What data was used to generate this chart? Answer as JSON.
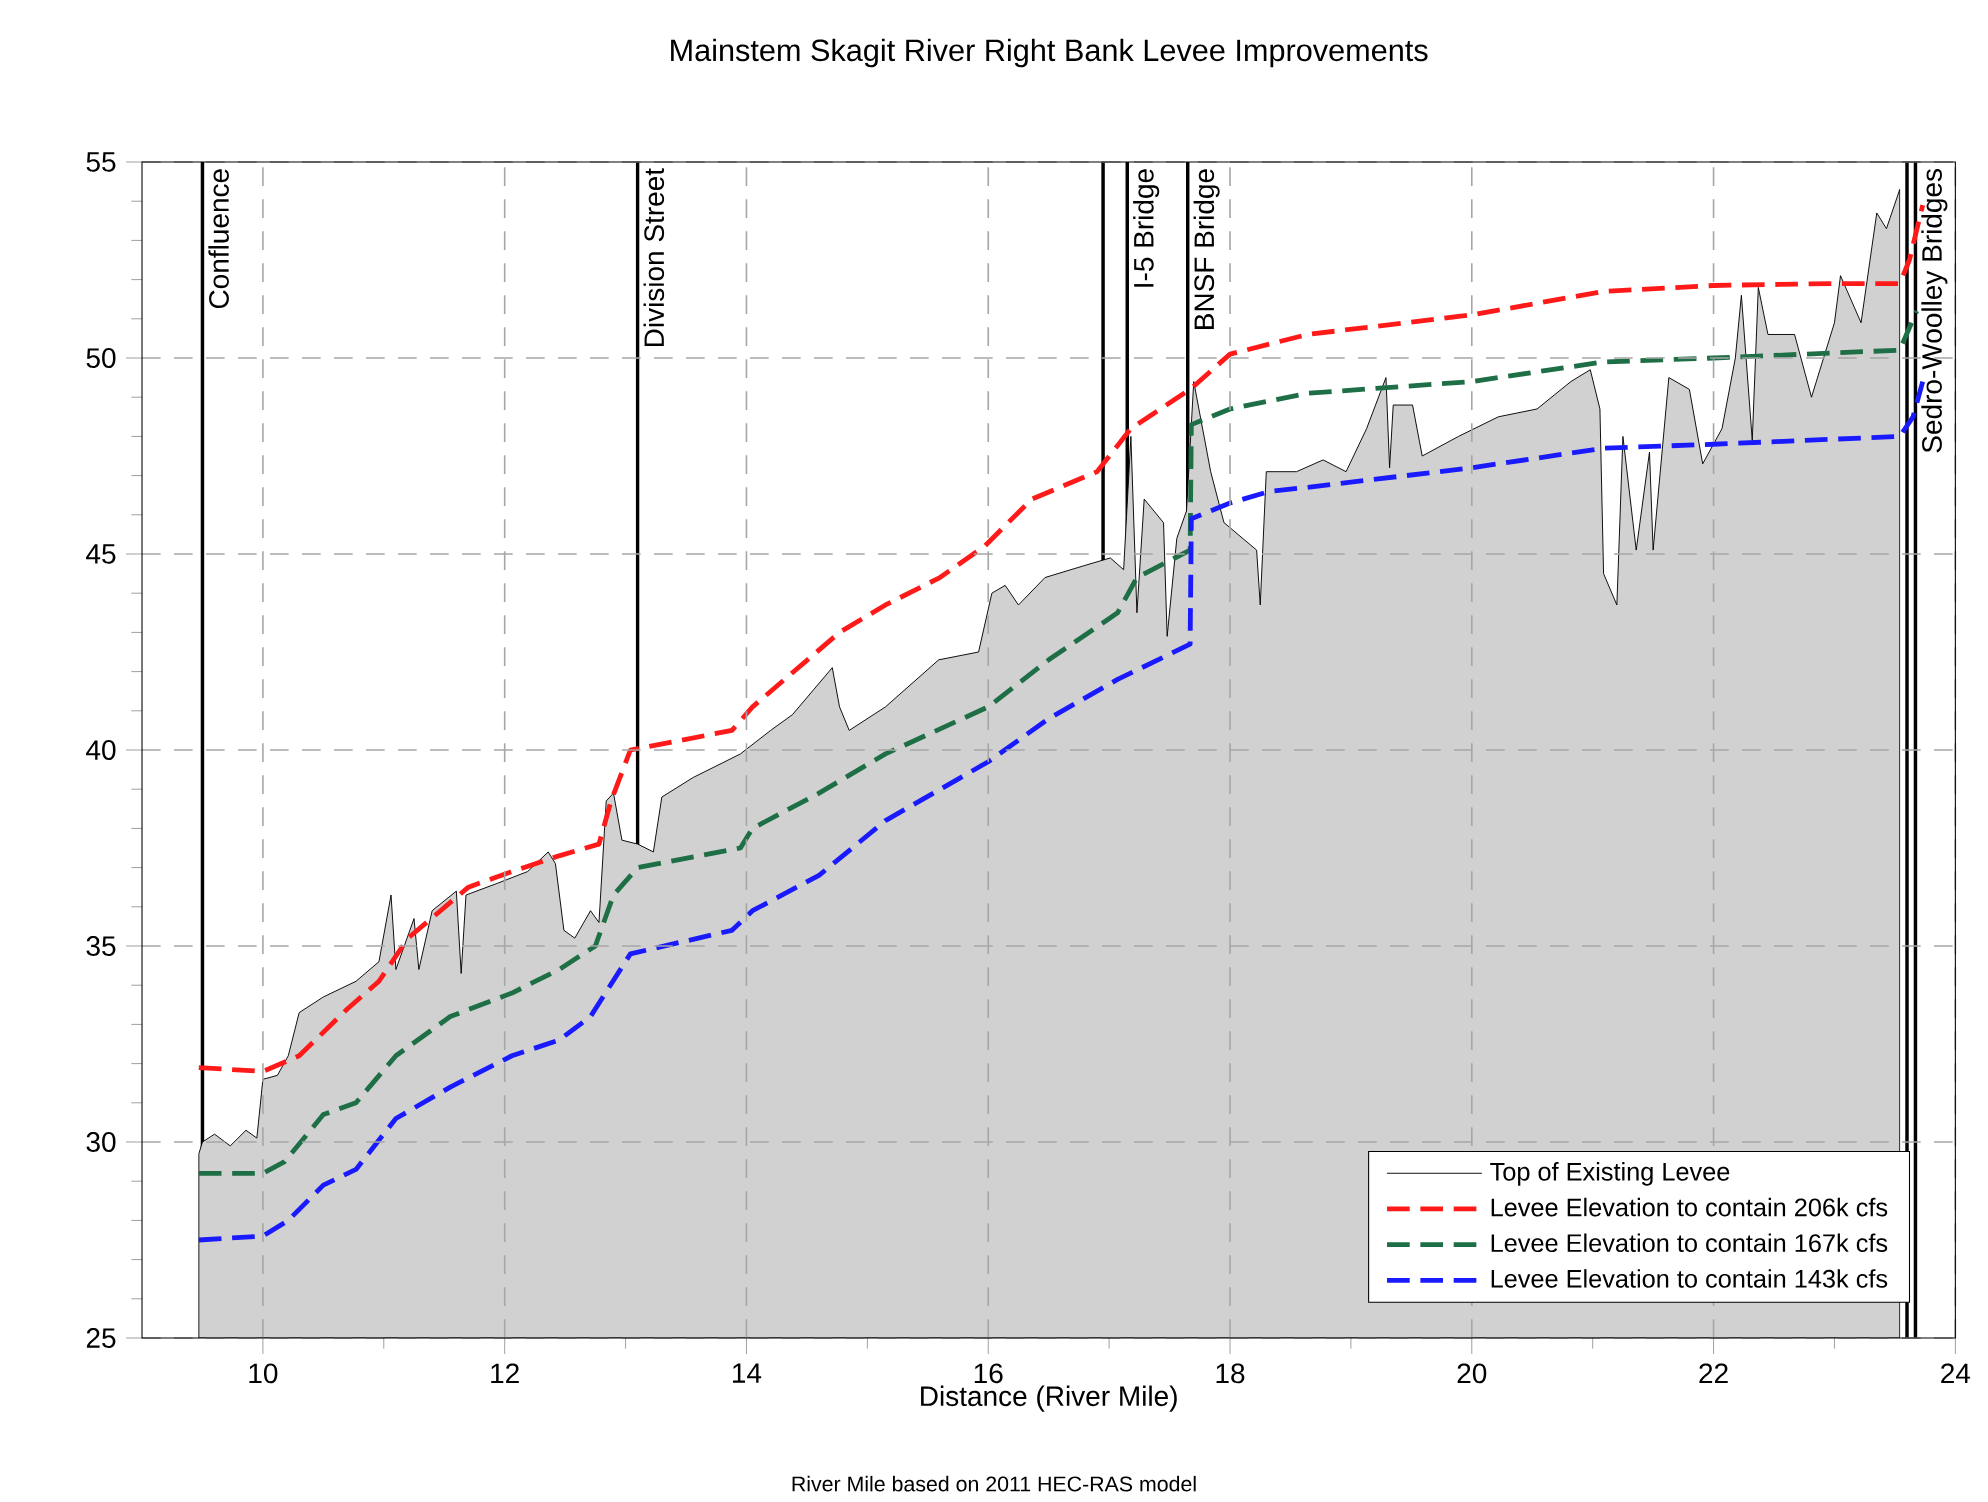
{
  "chart_data": {
    "type": "line",
    "title": "Mainstem Skagit River Right Bank Levee Improvements",
    "xlabel": "Distance (River Mile)",
    "xlim": [
      9,
      24
    ],
    "xticks": [
      10,
      12,
      14,
      16,
      18,
      20,
      22,
      24
    ],
    "ylim": [
      25,
      55
    ],
    "yticks": [
      25,
      30,
      35,
      40,
      45,
      50,
      55
    ],
    "grid": true,
    "legend": "bottom right",
    "series": [
      {
        "name": "Top of Existing Levee",
        "type": "area",
        "color": "#000000",
        "line_style": "solid",
        "x": [
          9.47,
          9.5,
          9.6,
          9.73,
          9.86,
          9.95,
          10,
          10.12,
          10.21,
          10.3,
          10.5,
          10.77,
          10.96,
          11.06,
          11.1,
          11.25,
          11.29,
          11.4,
          11.6,
          11.64,
          11.68,
          11.94,
          12.19,
          12.36,
          12.42,
          12.49,
          12.58,
          12.71,
          12.78,
          12.84,
          12.9,
          12.97,
          13.1,
          13.23,
          13.3,
          13.56,
          13.95,
          14.2,
          14.38,
          14.71,
          14.77,
          14.85,
          15.15,
          15.59,
          15.92,
          16.03,
          16.14,
          16.25,
          16.47,
          16.79,
          17.01,
          17.12,
          17.18,
          17.23,
          17.29,
          17.45,
          17.48,
          17.56,
          17.64,
          17.7,
          17.84,
          17.95,
          18.22,
          18.25,
          18.3,
          18.55,
          18.77,
          18.96,
          19.13,
          19.29,
          19.32,
          19.35,
          19.51,
          19.59,
          19.89,
          20.22,
          20.54,
          20.82,
          20.98,
          21.06,
          21.09,
          21.2,
          21.25,
          21.36,
          21.47,
          21.5,
          21.63,
          21.8,
          21.91,
          22.07,
          22.18,
          22.23,
          22.32,
          22.37,
          22.45,
          22.67,
          22.81,
          23.0,
          23.05,
          23.22,
          23.35,
          23.43,
          23.54
        ],
        "values": [
          29.7,
          30.0,
          30.2,
          29.9,
          30.3,
          30.1,
          31.6,
          31.7,
          32.2,
          33.3,
          33.7,
          34.1,
          34.6,
          36.3,
          34.4,
          35.7,
          34.4,
          35.9,
          36.4,
          34.3,
          36.3,
          36.6,
          36.9,
          37.4,
          37.1,
          35.4,
          35.2,
          35.9,
          35.6,
          38.7,
          38.9,
          37.7,
          37.6,
          37.4,
          38.8,
          39.3,
          39.9,
          40.5,
          40.9,
          42.1,
          41.1,
          40.5,
          41.1,
          42.3,
          42.5,
          44.0,
          44.2,
          43.7,
          44.4,
          44.7,
          44.9,
          44.6,
          48.0,
          43.5,
          46.4,
          45.8,
          42.9,
          45.4,
          46.1,
          49.4,
          47.1,
          45.8,
          45.1,
          43.7,
          47.1,
          47.1,
          47.4,
          47.1,
          48.2,
          49.5,
          47.2,
          48.8,
          48.8,
          47.5,
          48.0,
          48.5,
          48.7,
          49.4,
          49.7,
          48.7,
          44.5,
          43.7,
          48.0,
          45.1,
          47.6,
          45.1,
          49.5,
          49.2,
          47.3,
          48.2,
          50.0,
          51.6,
          47.9,
          51.8,
          50.6,
          50.6,
          49.0,
          50.9,
          52.1,
          50.9,
          53.7,
          53.3,
          54.3
        ]
      },
      {
        "name": "Levee Elevation to contain 206k cfs",
        "color": "#ff1a1a",
        "line_style": "dashed",
        "x": [
          9.47,
          10.0,
          10.3,
          10.7,
          10.96,
          11.2,
          11.7,
          12.06,
          12.45,
          12.78,
          12.88,
          13.04,
          13.88,
          14.05,
          14.77,
          15.15,
          15.6,
          15.97,
          16.36,
          16.9,
          17.18,
          17.67,
          18.0,
          18.64,
          20.0,
          21.09,
          22.0,
          23.0,
          23.54,
          23.62,
          23.73
        ],
        "values": [
          31.9,
          31.8,
          32.2,
          33.4,
          34.1,
          35.2,
          36.5,
          36.9,
          37.3,
          37.6,
          38.7,
          40.0,
          40.5,
          41.1,
          43.0,
          43.7,
          44.4,
          45.2,
          46.4,
          47.1,
          48.2,
          49.2,
          50.1,
          50.6,
          51.1,
          51.7,
          51.85,
          51.9,
          51.9,
          52.5,
          53.9
        ]
      },
      {
        "name": "Levee Elevation to contain 167k cfs",
        "color": "#1e6e46",
        "line_style": "dashed",
        "x": [
          9.47,
          10.0,
          10.18,
          10.5,
          10.77,
          11.1,
          11.55,
          12.06,
          12.45,
          12.75,
          12.9,
          13.1,
          13.95,
          14.05,
          14.6,
          15.15,
          16.0,
          16.5,
          17.07,
          17.23,
          17.67,
          17.68,
          18.0,
          18.64,
          20.0,
          21.09,
          22.0,
          23.54,
          23.68
        ],
        "values": [
          29.2,
          29.2,
          29.5,
          30.7,
          31.0,
          32.2,
          33.2,
          33.8,
          34.4,
          35.0,
          36.3,
          37.0,
          37.5,
          38.0,
          38.9,
          39.9,
          41.1,
          42.3,
          43.5,
          44.4,
          45.1,
          48.3,
          48.7,
          49.1,
          49.4,
          49.9,
          50.0,
          50.2,
          51.2
        ]
      },
      {
        "name": "Levee Elevation to contain 143k cfs",
        "color": "#1a1aff",
        "line_style": "dashed",
        "x": [
          9.47,
          10.0,
          10.21,
          10.5,
          10.77,
          11.1,
          11.55,
          12.06,
          12.45,
          12.71,
          13.04,
          13.88,
          14.05,
          14.6,
          15.15,
          16.0,
          16.5,
          17.07,
          17.67,
          17.68,
          18.0,
          18.33,
          18.64,
          20.0,
          21.09,
          22.0,
          23.54,
          23.65,
          23.73
        ],
        "values": [
          27.5,
          27.6,
          28.0,
          28.9,
          29.3,
          30.6,
          31.4,
          32.2,
          32.6,
          33.2,
          34.8,
          35.4,
          35.9,
          36.8,
          38.2,
          39.7,
          40.8,
          41.8,
          42.7,
          45.9,
          46.3,
          46.6,
          46.7,
          47.2,
          47.7,
          47.8,
          48.0,
          48.5,
          49.4
        ]
      }
    ],
    "ref_lines": [
      {
        "axis": "x",
        "value": 9.5,
        "label": "Confluence"
      },
      {
        "axis": "x",
        "value": 13.1,
        "label": "Division Street"
      },
      {
        "axis": "x",
        "value": 16.95
      },
      {
        "axis": "x",
        "value": 17.15,
        "label": "I-5 Bridge"
      },
      {
        "axis": "x",
        "value": 17.65,
        "label": "BNSF Bridge"
      },
      {
        "axis": "x",
        "value": 23.6
      },
      {
        "axis": "x",
        "value": 23.67,
        "label": "Sedro-Woolley Bridges"
      }
    ],
    "annotations": [
      "River Mile based on 2011 HEC-RAS model"
    ]
  }
}
